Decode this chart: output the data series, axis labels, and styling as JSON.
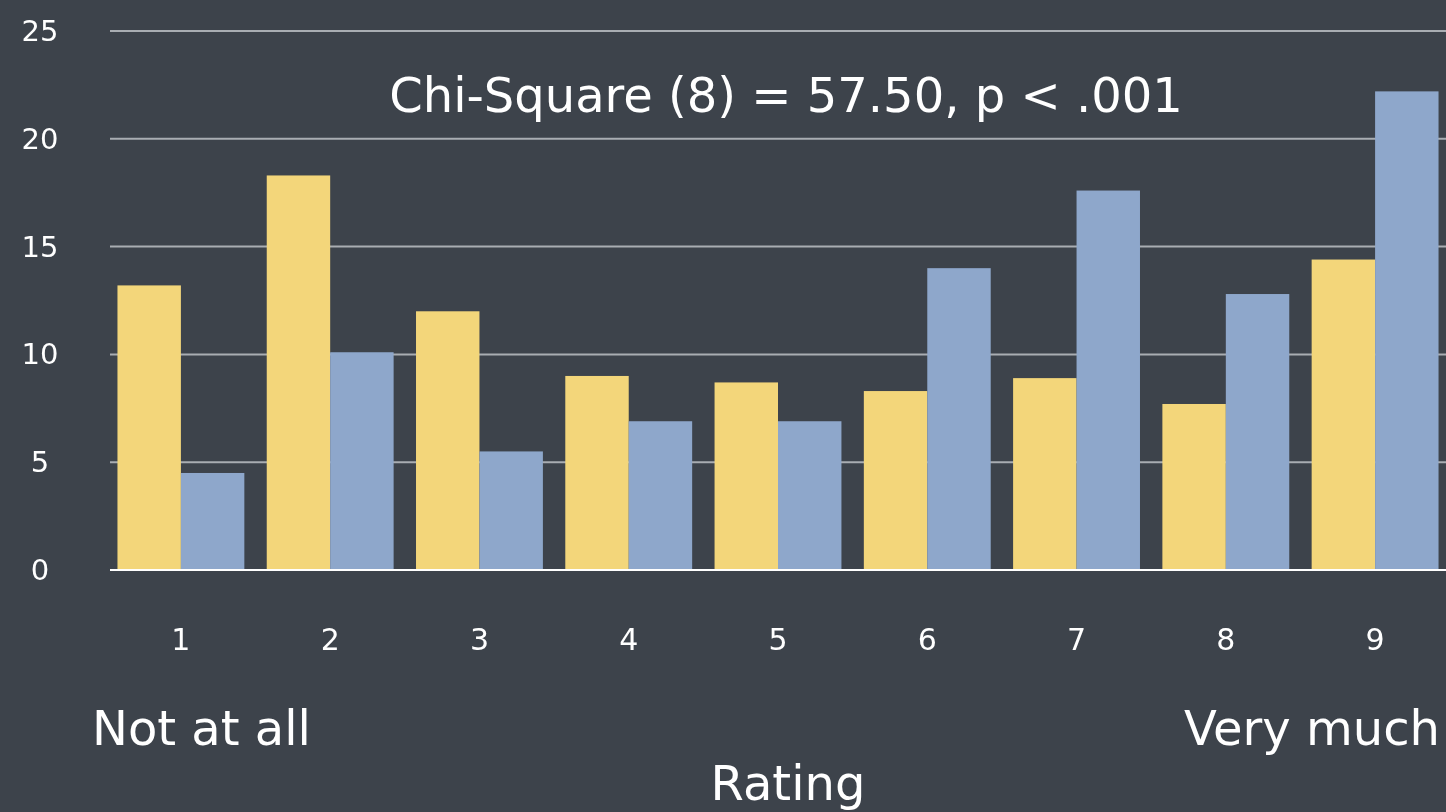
{
  "chart_data": {
    "type": "bar",
    "xlabel": "Rating",
    "categories": [
      "1",
      "2",
      "3",
      "4",
      "5",
      "6",
      "7",
      "8",
      "9"
    ],
    "series": [
      {
        "color": "#f3d67a",
        "values": [
          13.2,
          18.3,
          12.0,
          9.0,
          8.7,
          8.3,
          8.9,
          7.7,
          14.4
        ]
      },
      {
        "color": "#8ea7cb",
        "values": [
          4.5,
          10.1,
          5.5,
          6.9,
          6.9,
          14.0,
          17.6,
          12.8,
          22.2
        ]
      }
    ],
    "ylim": [
      0,
      25
    ],
    "yticks": [
      0,
      5,
      10,
      15,
      20,
      25
    ],
    "grid": "y",
    "annotations": [
      "Chi-Square (8) = 57.50, p < .001",
      "Not at all",
      "Very much"
    ]
  }
}
